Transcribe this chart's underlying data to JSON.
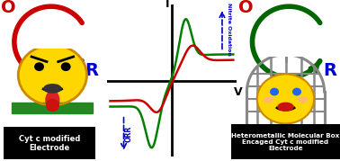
{
  "background_color": "#ffffff",
  "green_color": "#008000",
  "red_color": "#cc0000",
  "dark_red": "#cc0000",
  "dark_green": "#006600",
  "blue_color": "#0000cc",
  "cage_color": "#888888",
  "yellow_face": "#FFD700",
  "yellow_outline": "#cc8800",
  "green_platform": "#228822",
  "label_I": "I",
  "label_V": "V",
  "label_ORR": "ORR",
  "label_nitrite": "Nitrite Oxidation",
  "label_left_box": "Cyt c modified\nElectrode",
  "label_right_box": "Heterometallic Molecular Box\nEncaged Cyt c modified\nElectrode",
  "left_O_color": "#cc0000",
  "left_R_color": "#0000cc",
  "right_O_color": "#cc0000",
  "right_R_color": "#0000cc"
}
